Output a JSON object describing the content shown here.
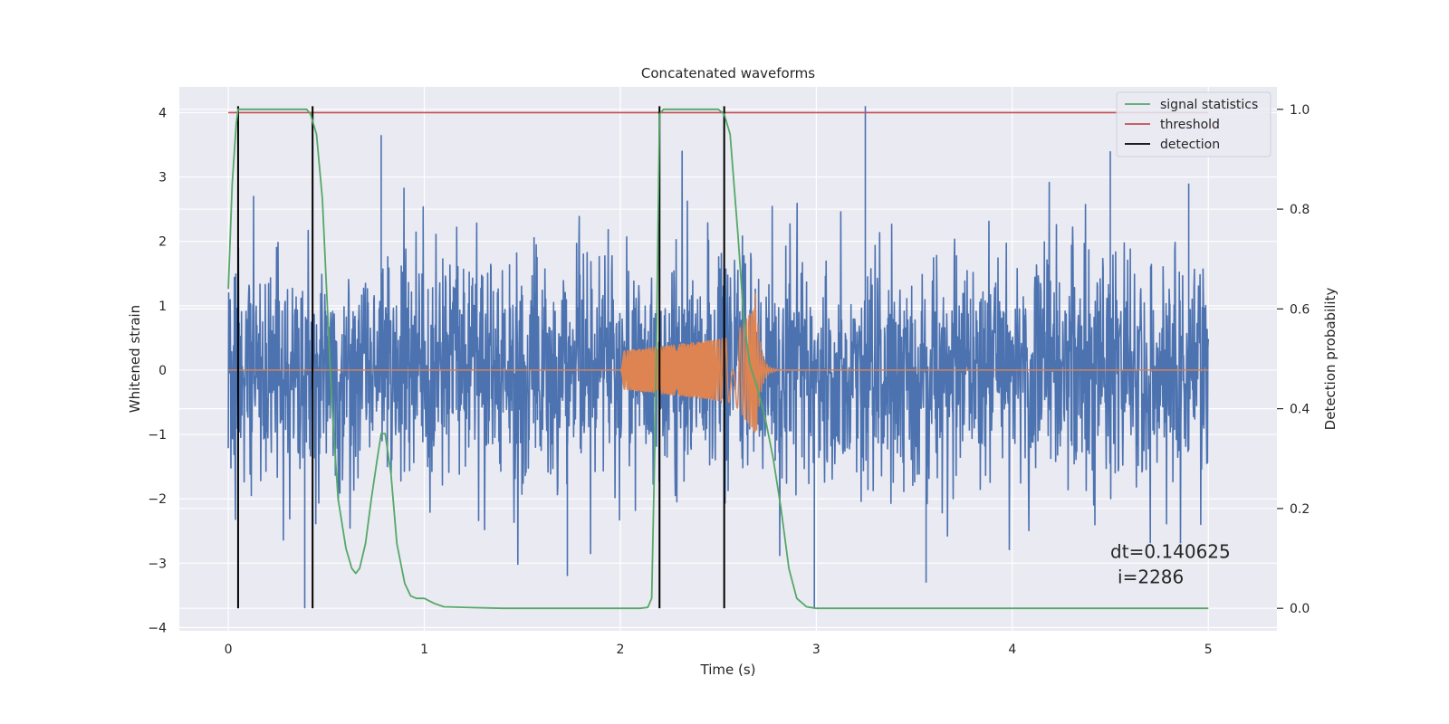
{
  "chart_data": {
    "type": "line",
    "title": "Concatenated waveforms",
    "xlabel": "Time (s)",
    "ylabel": "Whitened strain",
    "ylabel_right": "Detection probability",
    "xlim": [
      -0.25,
      5.35
    ],
    "ylim": [
      -4.05,
      4.4
    ],
    "ylim_right": [
      -0.045,
      1.045
    ],
    "xticks": [
      "0",
      "1",
      "2",
      "3",
      "4",
      "5"
    ],
    "xtick_values": [
      0,
      1,
      2,
      3,
      4,
      5
    ],
    "yticks": [
      "−4",
      "−3",
      "−2",
      "−1",
      "0",
      "1",
      "2",
      "3",
      "4"
    ],
    "ytick_values": [
      -4,
      -3,
      -2,
      -1,
      0,
      1,
      2,
      3,
      4
    ],
    "yticks_right": [
      "0.0",
      "0.2",
      "0.4",
      "0.6",
      "0.8",
      "1.0"
    ],
    "ytick_right_values": [
      0.0,
      0.2,
      0.4,
      0.6,
      0.8,
      1.0
    ],
    "grid": true,
    "legend_position": "top-right",
    "colors": {
      "background": "#eaeaf2",
      "grid": "#ffffff",
      "strain": "#4c72b0",
      "waveform": "#dd8452",
      "statistic": "#55a868",
      "threshold": "#c44e52",
      "detection": "#000000"
    },
    "series": [
      {
        "name": "",
        "axis": "left",
        "kind": "noise",
        "x_range": [
          0,
          5
        ],
        "std": 0.85,
        "spikes": [
          [
            0.39,
            -3.7
          ],
          [
            0.78,
            3.65
          ],
          [
            1.73,
            -3.2
          ],
          [
            2.99,
            -3.7
          ],
          [
            3.25,
            4.1
          ],
          [
            3.56,
            -3.3
          ],
          [
            4.5,
            3.4
          ],
          [
            4.9,
            2.9
          ]
        ]
      },
      {
        "name": "",
        "axis": "left",
        "kind": "chirp",
        "x_range": [
          2.0,
          2.69
        ],
        "amp_start": 0.3,
        "amp_peak": 1.0,
        "tail_to": 3.0
      },
      {
        "name": "signal statistics",
        "axis": "right",
        "x": [
          0.0,
          0.02,
          0.04,
          0.05,
          0.06,
          0.08,
          0.1,
          0.2,
          0.3,
          0.4,
          0.42,
          0.45,
          0.48,
          0.5,
          0.53,
          0.56,
          0.6,
          0.63,
          0.65,
          0.67,
          0.7,
          0.73,
          0.76,
          0.78,
          0.8,
          0.83,
          0.86,
          0.9,
          0.93,
          0.96,
          1.0,
          1.05,
          1.1,
          1.2,
          1.4,
          1.6,
          1.8,
          2.0,
          2.1,
          2.14,
          2.16,
          2.18,
          2.2,
          2.22,
          2.26,
          2.3,
          2.4,
          2.5,
          2.53,
          2.56,
          2.6,
          2.63,
          2.66,
          2.7,
          2.74,
          2.78,
          2.82,
          2.86,
          2.9,
          2.95,
          3.0,
          3.2,
          3.6,
          4.0,
          4.5,
          5.0
        ],
        "y": [
          0.64,
          0.85,
          0.97,
          1.0,
          1.0,
          1.0,
          1.0,
          1.0,
          1.0,
          1.0,
          0.99,
          0.95,
          0.82,
          0.65,
          0.4,
          0.22,
          0.12,
          0.08,
          0.07,
          0.08,
          0.13,
          0.22,
          0.3,
          0.35,
          0.35,
          0.27,
          0.13,
          0.05,
          0.025,
          0.02,
          0.02,
          0.01,
          0.003,
          0.002,
          0.0,
          0.0,
          0.0,
          0.0,
          0.0,
          0.002,
          0.02,
          0.4,
          0.99,
          1.0,
          1.0,
          1.0,
          1.0,
          1.0,
          0.99,
          0.95,
          0.75,
          0.58,
          0.49,
          0.44,
          0.38,
          0.3,
          0.2,
          0.08,
          0.02,
          0.003,
          0.0,
          0.0,
          0.0,
          0.0,
          0.0,
          0.0
        ]
      },
      {
        "name": "threshold",
        "axis": "left",
        "x": [
          0,
          5
        ],
        "y": [
          4.0,
          4.0
        ]
      },
      {
        "name": "detection",
        "axis": "left",
        "x": [
          0.05,
          0.43,
          2.2,
          2.53
        ],
        "y_range": [
          -3.7,
          4.1
        ]
      }
    ],
    "annotation": {
      "line1": "dt=0.140625",
      "line2": "i=2286",
      "x": 4.5,
      "y": -2.92
    }
  }
}
